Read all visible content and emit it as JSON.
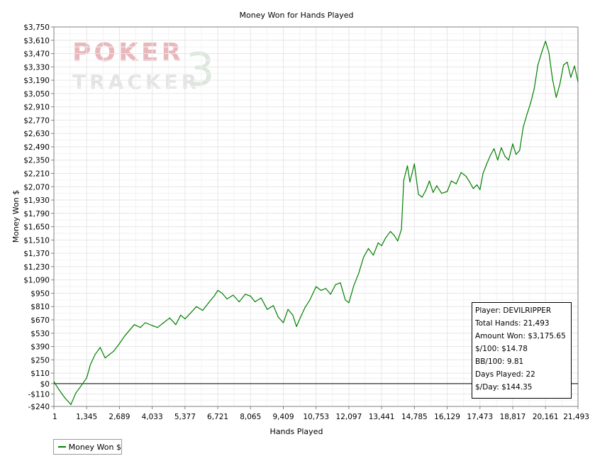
{
  "chart_data": {
    "type": "line",
    "title": "Money Won for Hands Played",
    "xlabel": "Hands Played",
    "ylabel": "Money Won $",
    "xlim": [
      1,
      21493
    ],
    "ylim": [
      -240,
      3750
    ],
    "x_ticks": [
      1,
      1345,
      2689,
      4033,
      5377,
      6721,
      8065,
      9409,
      10753,
      12097,
      13441,
      14785,
      16129,
      17473,
      18817,
      20161,
      21493
    ],
    "x_tick_labels": [
      "1",
      "1,345",
      "2,689",
      "4,033",
      "5,377",
      "6,721",
      "8,065",
      "9,409",
      "10,753",
      "12,097",
      "13,441",
      "14,785",
      "16,129",
      "17,473",
      "18,817",
      "20,161",
      "21,493"
    ],
    "y_ticks": [
      -240,
      -110,
      0,
      110,
      250,
      390,
      530,
      670,
      810,
      950,
      1090,
      1230,
      1370,
      1510,
      1650,
      1790,
      1930,
      2070,
      2210,
      2350,
      2490,
      2630,
      2770,
      2910,
      3050,
      3190,
      3330,
      3470,
      3610,
      3750
    ],
    "y_tick_labels": [
      "-$240",
      "-$110",
      "$0",
      "$110",
      "$250",
      "$390",
      "$530",
      "$670",
      "$810",
      "$950",
      "$1,090",
      "$1,230",
      "$1,370",
      "$1,510",
      "$1,650",
      "$1,790",
      "$1,930",
      "$2,070",
      "$2,210",
      "$2,350",
      "$2,490",
      "$2,630",
      "$2,770",
      "$2,910",
      "$3,050",
      "$3,190",
      "$3,330",
      "$3,470",
      "$3,610",
      "$3,750"
    ],
    "grid": true,
    "zero_line": true,
    "series": [
      {
        "name": "Money Won $",
        "color": "#008000",
        "x": [
          1,
          200,
          450,
          700,
          900,
          1100,
          1345,
          1500,
          1700,
          1900,
          2100,
          2250,
          2450,
          2689,
          2900,
          3100,
          3300,
          3550,
          3750,
          4033,
          4250,
          4500,
          4750,
          5000,
          5200,
          5377,
          5600,
          5850,
          6100,
          6350,
          6600,
          6721,
          6900,
          7100,
          7350,
          7600,
          7850,
          8065,
          8250,
          8500,
          8750,
          9000,
          9200,
          9409,
          9600,
          9800,
          9950,
          10100,
          10300,
          10500,
          10753,
          10950,
          11150,
          11350,
          11550,
          11750,
          11950,
          12097,
          12300,
          12500,
          12700,
          12900,
          13100,
          13300,
          13441,
          13600,
          13800,
          13950,
          14100,
          14250,
          14350,
          14500,
          14600,
          14785,
          14950,
          15100,
          15250,
          15400,
          15550,
          15700,
          15900,
          16129,
          16300,
          16500,
          16700,
          16900,
          17050,
          17200,
          17350,
          17473,
          17600,
          17750,
          17900,
          18050,
          18200,
          18350,
          18500,
          18650,
          18817,
          18950,
          19100,
          19250,
          19400,
          19550,
          19700,
          19850,
          20000,
          20161,
          20300,
          20450,
          20600,
          20750,
          20900,
          21050,
          21200,
          21350,
          21493
        ],
        "values": [
          20,
          -60,
          -150,
          -220,
          -100,
          -30,
          60,
          200,
          310,
          380,
          270,
          300,
          340,
          420,
          500,
          560,
          620,
          590,
          640,
          610,
          590,
          640,
          690,
          620,
          720,
          680,
          740,
          810,
          770,
          850,
          930,
          980,
          950,
          890,
          930,
          860,
          940,
          920,
          860,
          900,
          780,
          820,
          700,
          640,
          780,
          720,
          600,
          690,
          800,
          880,
          1020,
          980,
          1000,
          940,
          1040,
          1060,
          880,
          850,
          1030,
          1160,
          1330,
          1420,
          1350,
          1480,
          1450,
          1530,
          1600,
          1560,
          1500,
          1620,
          2140,
          2290,
          2120,
          2310,
          1990,
          1960,
          2030,
          2130,
          2010,
          2080,
          2000,
          2020,
          2130,
          2100,
          2220,
          2180,
          2120,
          2050,
          2090,
          2040,
          2210,
          2310,
          2400,
          2470,
          2350,
          2480,
          2390,
          2350,
          2520,
          2410,
          2450,
          2700,
          2830,
          2950,
          3100,
          3350,
          3480,
          3600,
          3480,
          3200,
          3010,
          3150,
          3350,
          3380,
          3220,
          3340,
          3175
        ]
      }
    ]
  },
  "info_box": {
    "player": "Player: DEVILRIPPER",
    "total_hands": "Total Hands: 21,493",
    "amount_won": "Amount Won: $3,175.65",
    "per_100": "$/100: $14.78",
    "bb_per_100": "BB/100: 9.81",
    "days_played": "Days Played: 22",
    "per_day": "$/Day: $144.35"
  },
  "watermark": {
    "line1": "POKER",
    "line2": "TRACKER",
    "mark": "3",
    "color": "#e8b8bd"
  },
  "legend": {
    "label": "Money Won $",
    "color": "#008000"
  }
}
